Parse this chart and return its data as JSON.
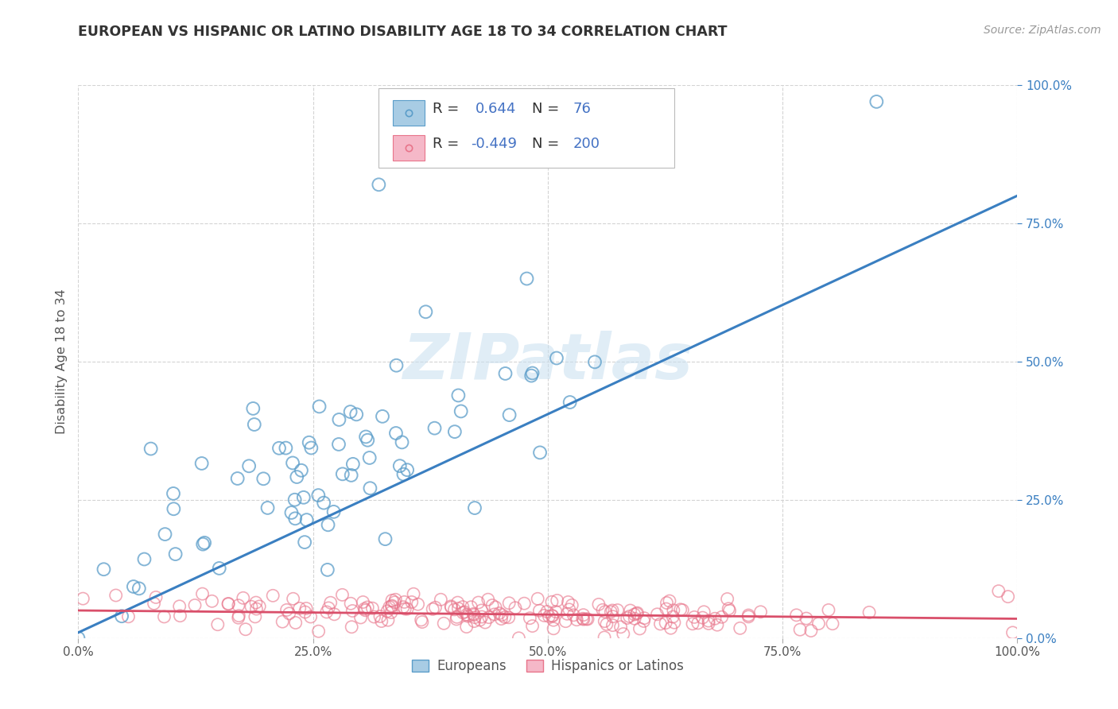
{
  "title": "EUROPEAN VS HISPANIC OR LATINO DISABILITY AGE 18 TO 34 CORRELATION CHART",
  "source": "Source: ZipAtlas.com",
  "ylabel": "Disability Age 18 to 34",
  "xlim": [
    0,
    100
  ],
  "ylim": [
    0,
    100
  ],
  "xtick_vals": [
    0,
    25,
    50,
    75,
    100
  ],
  "xtick_labels": [
    "0.0%",
    "25.0%",
    "50.0%",
    "75.0%",
    "100.0%"
  ],
  "ytick_vals": [
    0,
    25,
    50,
    75,
    100
  ],
  "ytick_labels_right": [
    "0.0%",
    "25.0%",
    "50.0%",
    "75.0%",
    "100.0%"
  ],
  "blue_R": 0.644,
  "blue_N": 76,
  "pink_R": -0.449,
  "pink_N": 200,
  "legend_labels": [
    "Europeans",
    "Hispanics or Latinos"
  ],
  "blue_color": "#a8cce4",
  "pink_color": "#f5b8c8",
  "blue_edge_color": "#5b9dc9",
  "pink_edge_color": "#e8748a",
  "blue_line_color": "#3a7fc1",
  "pink_line_color": "#d94f6a",
  "watermark_color": "#c8dff0",
  "background_color": "#ffffff",
  "grid_color": "#d0d0d0",
  "title_color": "#333333",
  "legend_val_color": "#4472c4",
  "source_color": "#999999"
}
